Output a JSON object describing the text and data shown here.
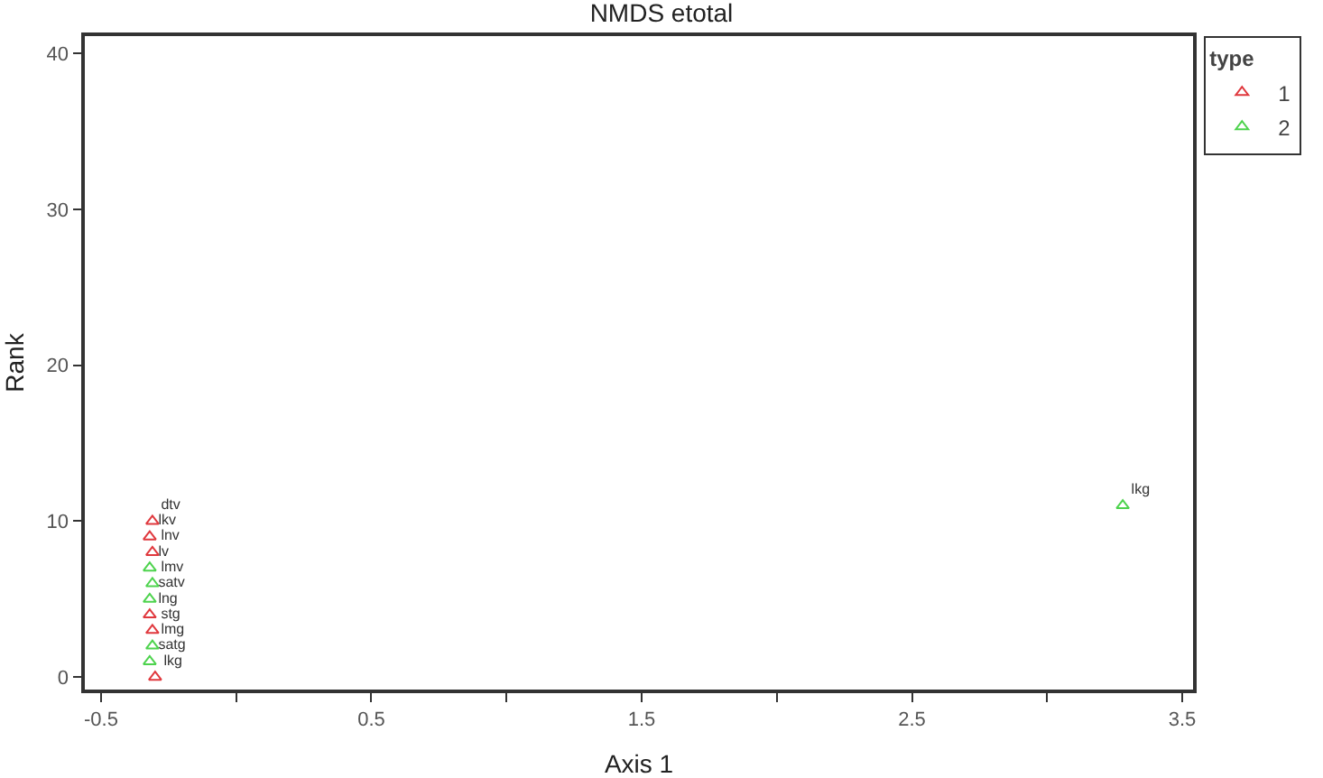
{
  "chart_data": {
    "type": "scatter",
    "title": "NMDS etotal",
    "xlabel": "Axis 1",
    "ylabel": "Rank",
    "legend_title": "type",
    "legend": "right",
    "grid": false,
    "marker": "triangle",
    "xlim": [
      -0.56,
      3.54
    ],
    "xticks": [
      -0.5,
      {
        "value": 0,
        "label": null
      },
      0.5,
      {
        "value": 1,
        "label": null
      },
      1.5,
      {
        "value": 2,
        "label": null
      },
      2.5,
      {
        "value": 3,
        "label": null
      },
      3.5
    ],
    "ylim": [
      -0.8,
      41.1
    ],
    "yticks": [
      0,
      10,
      20,
      30,
      40
    ],
    "series": [
      {
        "name": "1",
        "color": "#e0393e",
        "x": [
          -0.3,
          -0.31,
          -0.32,
          -0.31,
          -0.32,
          -0.31
        ],
        "values": [
          0,
          3,
          4,
          8,
          9,
          10
        ],
        "value_labels": [
          "lkg",
          "stg",
          "lng",
          "lnv",
          "lkv",
          "dtv"
        ]
      },
      {
        "name": "2",
        "color": "#4ed34e",
        "x": [
          -0.32,
          -0.31,
          -0.32,
          -0.31,
          -0.32,
          3.28
        ],
        "values": [
          1,
          2,
          5,
          6,
          7,
          11
        ],
        "value_labels": [
          "satg",
          "lmg",
          "satv",
          "lmv",
          "lv",
          "lkg"
        ]
      }
    ]
  }
}
